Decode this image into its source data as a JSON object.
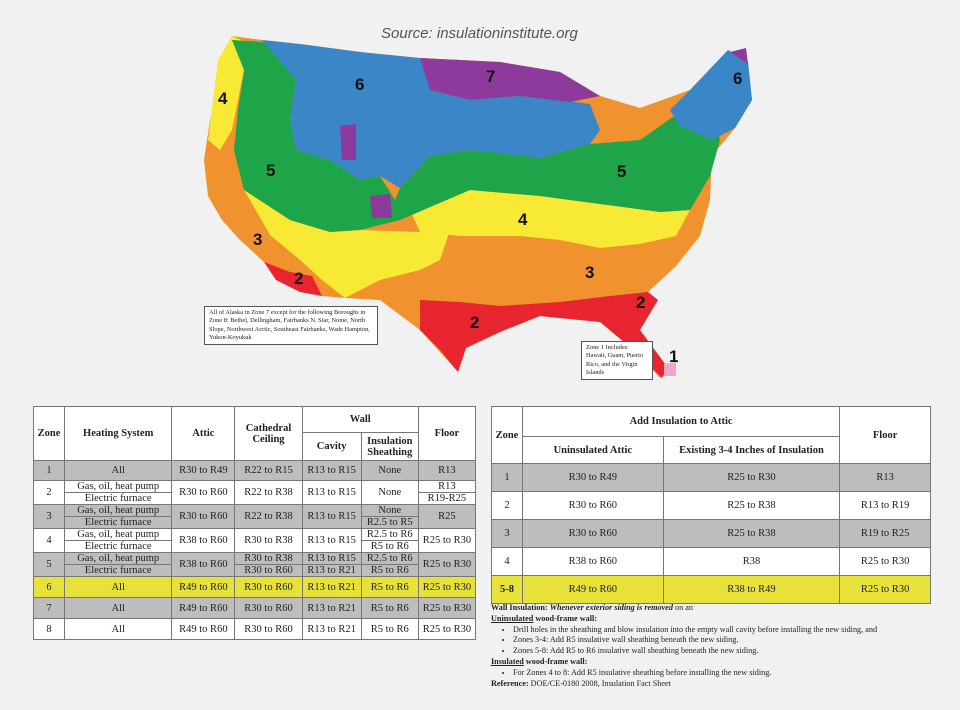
{
  "source": "Source: insulationinstitute.org",
  "map": {
    "zone_labels": [
      "1",
      "2",
      "2",
      "2",
      "3",
      "3",
      "4",
      "4",
      "5",
      "5",
      "5",
      "6",
      "6",
      "7"
    ],
    "zone_colors": {
      "1": "#f4a6c8",
      "2": "#e8242e",
      "3": "#f0922e",
      "4": "#f7e934",
      "5": "#1ea54a",
      "6": "#3a86c6",
      "7": "#8d3a9c"
    },
    "alaska_note": "All of Alaska in Zone 7 except for the following Boroughs in Zone 8: Bethel, Dellingham, Fairbanks N. Star, Nome, North Slope, Northwest Arctic, Southeast Fairbanks, Wade Hampton, Yukon-Koyukuk",
    "zone1_note": "Zone 1 Includes: Hawaii, Guam, Puerto Rico, and the Virgin Islands"
  },
  "table1": {
    "headers": {
      "zone": "Zone",
      "heating": "Heating System",
      "attic": "Attic",
      "cathedral": "Cathedral Ceiling",
      "wall": "Wall",
      "cavity": "Cavity",
      "sheathing": "Insulation Sheathing",
      "floor": "Floor"
    },
    "rows": [
      {
        "zone": "1",
        "heating": [
          "All"
        ],
        "attic": "R30 to R49",
        "cathedral": "R22 to R15",
        "cavity": "R13 to R15",
        "sheathing": [
          "None"
        ],
        "floor": [
          "R13"
        ]
      },
      {
        "zone": "2",
        "heating": [
          "Gas, oil, heat pump",
          "Electric furnace"
        ],
        "attic": "R30 to R60",
        "cathedral": "R22 to R38",
        "cavity": "R13 to R15",
        "sheathing": [
          "None"
        ],
        "floor": [
          "R13",
          "R19-R25"
        ]
      },
      {
        "zone": "3",
        "heating": [
          "Gas, oil, heat pump",
          "Electric furnace"
        ],
        "attic": "R30 to R60",
        "cathedral": "R22 to R38",
        "cavity": "R13 to R15",
        "sheathing": [
          "None",
          "R2.5 to R5"
        ],
        "floor": [
          "R25"
        ]
      },
      {
        "zone": "4",
        "heating": [
          "Gas, oil, heat pump",
          "Electric furnace"
        ],
        "attic": "R38 to R60",
        "cathedral": "R30 to R38",
        "cavity": "R13 to R15",
        "sheathing": [
          "R2.5 to R6",
          "R5 to R6"
        ],
        "floor": [
          "R25 to R30"
        ]
      },
      {
        "zone": "5",
        "heating": [
          "Gas, oil, heat pump",
          "Electric furnace"
        ],
        "attic": "R38 to R60",
        "cathedral": [
          "R30 to R38",
          "R30 to R60"
        ],
        "cavity": [
          "R13 to R15",
          "R13 to R21"
        ],
        "sheathing": [
          "R2.5 to R6",
          "R5 to R6"
        ],
        "floor": [
          "R25 to R30"
        ]
      },
      {
        "zone": "6",
        "heating": [
          "All"
        ],
        "attic": "R49 to R60",
        "cathedral": "R30 to R60",
        "cavity": "R13 to R21",
        "sheathing": [
          "R5 to R6"
        ],
        "floor": [
          "R25 to R30"
        ]
      },
      {
        "zone": "7",
        "heating": [
          "All"
        ],
        "attic": "R49 to R60",
        "cathedral": "R30 to R60",
        "cavity": "R13 to R21",
        "sheathing": [
          "R5 to R6"
        ],
        "floor": [
          "R25 to R30"
        ]
      },
      {
        "zone": "8",
        "heating": [
          "All"
        ],
        "attic": "R49 to R60",
        "cathedral": "R30 to R60",
        "cavity": "R13 to R21",
        "sheathing": [
          "R5 to R6"
        ],
        "floor": [
          "R25 to R30"
        ]
      }
    ]
  },
  "table2": {
    "headers": {
      "zone": "Zone",
      "add": "Add Insulation to Attic",
      "uninsulated": "Uninsulated Attic",
      "existing": "Existing 3-4 Inches of Insulation",
      "floor": "Floor"
    },
    "rows": [
      {
        "zone": "1",
        "uninsulated": "R30 to R49",
        "existing": "R25 to R30",
        "floor": "R13"
      },
      {
        "zone": "2",
        "uninsulated": "R30 to R60",
        "existing": "R25 to R38",
        "floor": "R13 to R19"
      },
      {
        "zone": "3",
        "uninsulated": "R30 to R60",
        "existing": "R25 to R38",
        "floor": "R19 to R25"
      },
      {
        "zone": "4",
        "uninsulated": "R38 to R60",
        "existing": "R38",
        "floor": "R25 to R30"
      },
      {
        "zone": "5-8",
        "uninsulated": "R49 to R60",
        "existing": "R38 to R49",
        "floor": "R25 to R30"
      }
    ]
  },
  "notes": {
    "wall_insulation_label": "Wall Insulation:",
    "wall_insulation_text": "Whenever exterior siding is removed",
    "wall_insulation_tail": "on an",
    "uninsulated_label": "Uninsulated",
    "uninsulated_tail": "wood-frame wall:",
    "uninsulated_items": [
      "Drill holes in the sheathing and blow insulation into the empty wall cavity before installing the new siding, and",
      "Zones 3-4: Add R5 insulative wall sheathing beneath the new siding.",
      "Zones 5-8: Add R5 to R6 insulative wall sheathing beneath the new siding."
    ],
    "insulated_label": "Insulated",
    "insulated_tail": "wood-frame wall:",
    "insulated_items": [
      "For Zones 4 to 8: Add R5 insulative sheathing before installing the new siding."
    ],
    "reference_label": "Reference:",
    "reference_text": "DOE/CE-0180 2008, Insulation Fact Sheet"
  }
}
